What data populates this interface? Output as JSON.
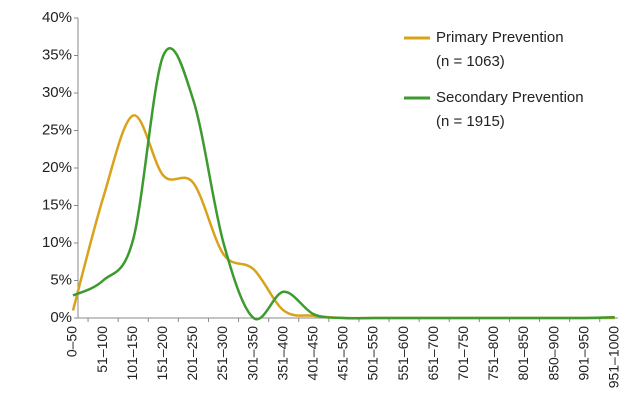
{
  "chart_data": {
    "type": "line",
    "categories": [
      "0–50",
      "51–100",
      "101–150",
      "151–200",
      "201–250",
      "251–300",
      "301–350",
      "351–400",
      "401–450",
      "451–500",
      "501–550",
      "551–600",
      "651–700",
      "701–750",
      "751–800",
      "801–850",
      "850–900",
      "901–950",
      "951–1000"
    ],
    "series": [
      {
        "name": "Primary Prevention",
        "note": "(n = 1063)",
        "color": "#d9a21b",
        "values": [
          1,
          16,
          27,
          19,
          18,
          8.5,
          6.5,
          1,
          0.3,
          0,
          0,
          0,
          0,
          0,
          0,
          0,
          0,
          0,
          0
        ]
      },
      {
        "name": "Secondary Prevention",
        "note": "(n = 1915)",
        "color": "#3c9a2e",
        "values": [
          3,
          5,
          10.5,
          35,
          29,
          10,
          0,
          3.5,
          0.5,
          0,
          0,
          0,
          0,
          0,
          0,
          0,
          0,
          0,
          0.1
        ]
      }
    ],
    "ylim": [
      0,
      40
    ],
    "yticks": [
      {
        "value": 0,
        "label": "0%"
      },
      {
        "value": 5,
        "label": "5%"
      },
      {
        "value": 10,
        "label": "10%"
      },
      {
        "value": 15,
        "label": "15%"
      },
      {
        "value": 20,
        "label": "20%"
      },
      {
        "value": 25,
        "label": "25%"
      },
      {
        "value": 30,
        "label": "30%"
      },
      {
        "value": 35,
        "label": "35%"
      },
      {
        "value": 40,
        "label": "40%"
      }
    ],
    "grid": false,
    "legend": "upper right"
  }
}
